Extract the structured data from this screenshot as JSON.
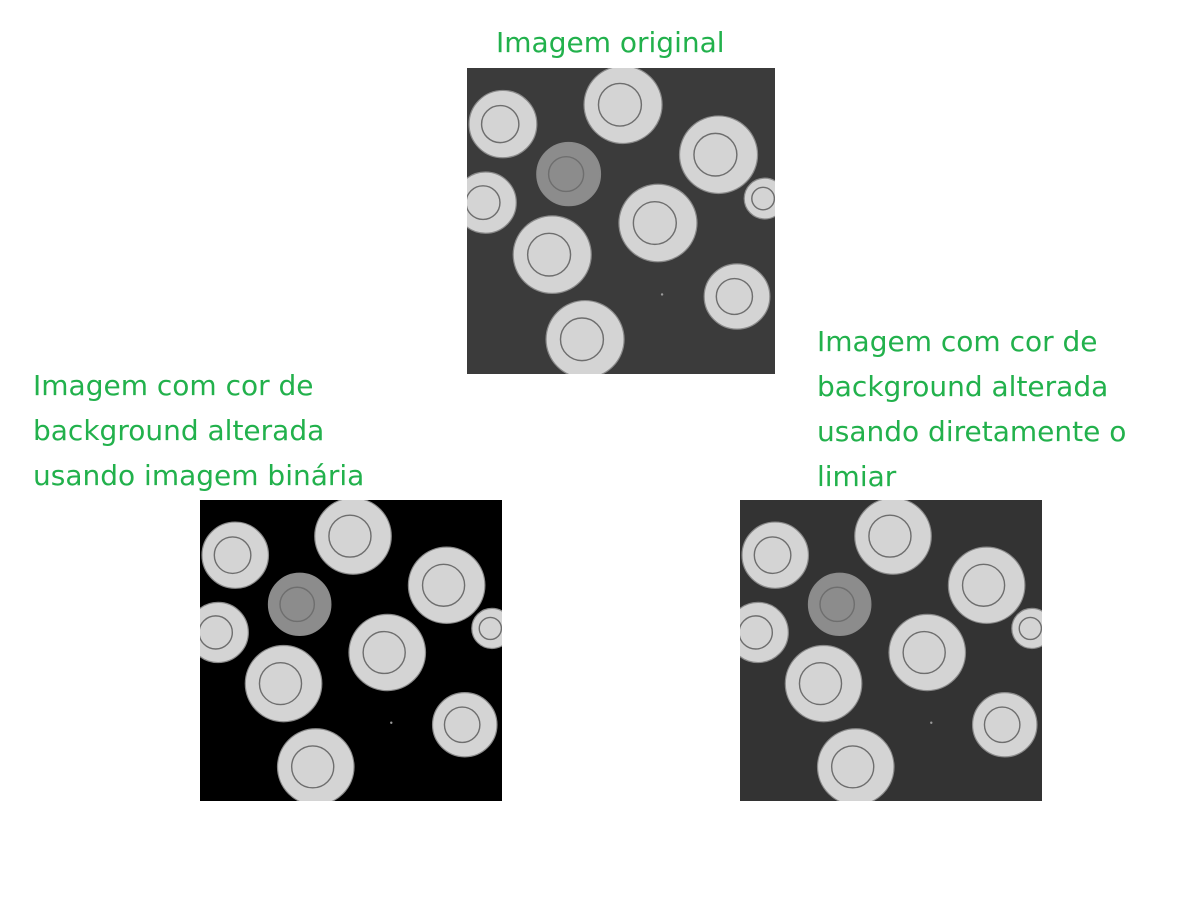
{
  "captions": {
    "original": "Imagem original",
    "binary": [
      "Imagem com cor de",
      "background alterada",
      "usando imagem binária"
    ],
    "threshold": [
      "Imagem com cor de",
      "background alterada",
      "usando diretamente o",
      "limiar"
    ]
  },
  "colors": {
    "caption_text": "#22b14c",
    "page_background": "#ffffff",
    "original_background": "#3b3b3b",
    "binary_background": "#000000",
    "threshold_background": "#333333",
    "coin_light": "#d4d4d4",
    "coin_dark": "#8c8c8c"
  },
  "images": {
    "original": {
      "icon": "coins-grayscale-image"
    },
    "binary": {
      "icon": "coins-binary-background-image"
    },
    "threshold": {
      "icon": "coins-threshold-background-image"
    }
  }
}
